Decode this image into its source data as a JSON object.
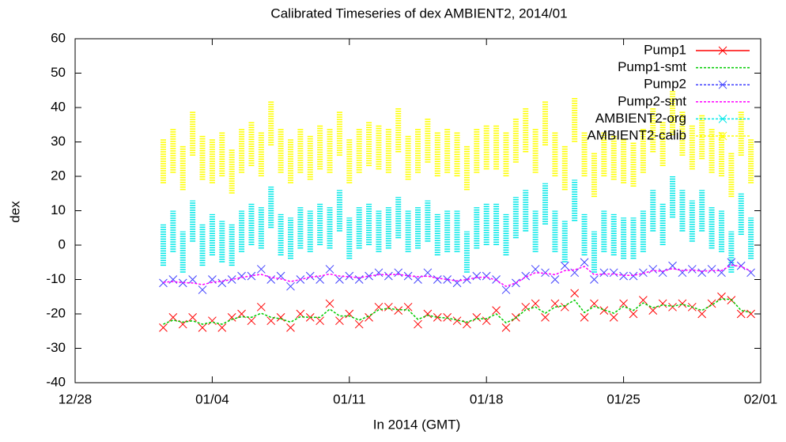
{
  "chart_data": {
    "type": "line",
    "title": "Calibrated Timeseries of dex AMBIENT2, 2014/01",
    "x_label": "In 2014 (GMT)",
    "y_label": "dex",
    "xlim": [
      0,
      35
    ],
    "xticks": [
      {
        "value": 0,
        "label": "12/28"
      },
      {
        "value": 7,
        "label": "01/04"
      },
      {
        "value": 14,
        "label": "01/11"
      },
      {
        "value": 21,
        "label": "01/18"
      },
      {
        "value": 28,
        "label": "01/25"
      },
      {
        "value": 35,
        "label": "02/01"
      }
    ],
    "ylim": [
      -40,
      60
    ],
    "yticks": [
      -40,
      -30,
      -20,
      -10,
      0,
      10,
      20,
      30,
      40,
      50,
      60
    ],
    "legend": "top-right",
    "x": [
      4.5,
      5,
      5.5,
      6,
      6.5,
      7,
      7.5,
      8,
      8.5,
      9,
      9.5,
      10,
      10.5,
      11,
      11.5,
      12,
      12.5,
      13,
      13.5,
      14,
      14.5,
      15,
      15.5,
      16,
      16.5,
      17,
      17.5,
      18,
      18.5,
      19,
      19.5,
      20,
      20.5,
      21,
      21.5,
      22,
      22.5,
      23,
      23.5,
      24,
      24.5,
      25,
      25.5,
      26,
      26.5,
      27,
      27.5,
      28,
      28.5,
      29,
      29.5,
      30,
      30.5,
      31,
      31.5,
      32,
      32.5,
      33,
      33.5,
      34,
      34.5
    ],
    "series": [
      {
        "name": "Pump1",
        "color": "#ff0000",
        "style": "points",
        "values": [
          -24,
          -21,
          -23,
          -21,
          -24,
          -22,
          -24,
          -21,
          -20,
          -22,
          -18,
          -22,
          -21,
          -24,
          -20,
          -21,
          -22,
          -17,
          -22,
          -20,
          -23,
          -21,
          -18,
          -18,
          -19,
          -18,
          -23,
          -20,
          -21,
          -21,
          -22,
          -23,
          -21,
          -22,
          -19,
          -24,
          -21,
          -18,
          -17,
          -21,
          -17,
          -18,
          -14,
          -21,
          -17,
          -19,
          -21,
          -17,
          -20,
          -16,
          -19,
          -17,
          -18,
          -17,
          -18,
          -20,
          -17,
          -15,
          -16,
          -20,
          -20
        ]
      },
      {
        "name": "Pump1-smt",
        "color": "#00cc00",
        "style": "line",
        "values": [
          -23,
          -21.8,
          -22.4,
          -22,
          -23,
          -22.4,
          -23,
          -21.6,
          -20.8,
          -21,
          -19.8,
          -21,
          -21.4,
          -22.4,
          -20.8,
          -21,
          -21,
          -18.6,
          -20.6,
          -20.6,
          -21.8,
          -20.6,
          -18.8,
          -18.4,
          -18.8,
          -18.8,
          -21.6,
          -20.4,
          -21,
          -21.2,
          -21.8,
          -22.4,
          -21.4,
          -21.4,
          -20,
          -22.6,
          -21.2,
          -18.8,
          -18,
          -19.8,
          -18,
          -17.6,
          -16,
          -19.6,
          -17.8,
          -18.8,
          -19.8,
          -17.8,
          -19,
          -16.8,
          -18.2,
          -17.4,
          -17.8,
          -17.2,
          -18,
          -19,
          -17.4,
          -15.6,
          -15.8,
          -19,
          -19.6
        ]
      },
      {
        "name": "Pump2",
        "color": "#4040ff",
        "style": "points",
        "values": [
          -11,
          -10,
          -11,
          -10,
          -13,
          -10,
          -11,
          -10,
          -9,
          -9,
          -7,
          -10,
          -9,
          -12,
          -10,
          -9,
          -10,
          -7,
          -10,
          -9,
          -10,
          -9,
          -8,
          -9,
          -8,
          -9,
          -10,
          -8,
          -10,
          -10,
          -11,
          -10,
          -9,
          -9,
          -10,
          -13,
          -11,
          -9,
          -7,
          -8,
          -10,
          -6,
          -8,
          -5,
          -10,
          -8,
          -8,
          -9,
          -9,
          -8,
          -7,
          -8,
          -6,
          -8,
          -7,
          -8,
          -7,
          -8,
          -5,
          -6,
          -8
        ]
      },
      {
        "name": "Pump2-smt",
        "color": "#ff00ff",
        "style": "line",
        "values": [
          -10.8,
          -10.6,
          -10.9,
          -11,
          -11.5,
          -10.8,
          -10.5,
          -10,
          -9.4,
          -8.9,
          -8.5,
          -9.4,
          -9.8,
          -10.6,
          -10,
          -9.3,
          -9,
          -8.4,
          -9,
          -9.2,
          -9.5,
          -9,
          -8.6,
          -8.6,
          -8.5,
          -8.9,
          -9.2,
          -9,
          -9.6,
          -10,
          -10.4,
          -10,
          -9.4,
          -9.3,
          -10.2,
          -12,
          -11,
          -9.3,
          -8,
          -8.2,
          -8.6,
          -7.4,
          -7.2,
          -6.2,
          -8.6,
          -8.4,
          -8.4,
          -8.8,
          -8.8,
          -8.2,
          -7.4,
          -7.6,
          -6.8,
          -7.4,
          -7.2,
          -7.6,
          -7.4,
          -7.4,
          -5.8,
          -6.2,
          -7.6
        ]
      },
      {
        "name": "AMBIENT2-org",
        "color": "#00e8e8",
        "style": "range",
        "low": [
          -6,
          -2,
          -8,
          1,
          -6,
          -3,
          -5,
          -6,
          -2,
          0,
          -1,
          5,
          -3,
          -4,
          -1,
          -2,
          0,
          -1,
          4,
          -4,
          -1,
          0,
          -2,
          -1,
          2,
          -2,
          -1,
          1,
          -3,
          -2,
          -2,
          -8,
          -1,
          0,
          0,
          -3,
          2,
          4,
          -2,
          6,
          -2,
          -5,
          7,
          -3,
          -8,
          -2,
          -3,
          -4,
          -4,
          -2,
          4,
          0,
          8,
          4,
          1,
          4,
          -1,
          -2,
          -8,
          3,
          -4
        ],
        "high": [
          6,
          10,
          4,
          13,
          6,
          9,
          7,
          6,
          10,
          12,
          11,
          17,
          9,
          8,
          11,
          10,
          12,
          11,
          16,
          8,
          11,
          12,
          10,
          11,
          14,
          10,
          11,
          13,
          9,
          10,
          10,
          4,
          11,
          12,
          12,
          9,
          14,
          16,
          10,
          18,
          10,
          7,
          19,
          9,
          4,
          10,
          9,
          8,
          8,
          10,
          16,
          12,
          20,
          16,
          13,
          16,
          11,
          10,
          4,
          15,
          8
        ]
      },
      {
        "name": "AMBIENT2-calib",
        "color": "#ffff00",
        "style": "range",
        "low": [
          18,
          21,
          16,
          26,
          19,
          18,
          20,
          15,
          21,
          23,
          20,
          29,
          21,
          18,
          21,
          19,
          22,
          21,
          26,
          18,
          21,
          23,
          22,
          21,
          27,
          19,
          21,
          24,
          20,
          21,
          20,
          16,
          21,
          22,
          22,
          20,
          24,
          27,
          21,
          29,
          20,
          16,
          30,
          20,
          14,
          20,
          19,
          18,
          17,
          21,
          27,
          23,
          32,
          26,
          22,
          25,
          21,
          20,
          14,
          26,
          18
        ],
        "high": [
          31,
          34,
          29,
          39,
          32,
          31,
          33,
          28,
          34,
          36,
          33,
          42,
          34,
          31,
          34,
          32,
          35,
          34,
          39,
          31,
          34,
          36,
          35,
          34,
          40,
          32,
          34,
          37,
          33,
          34,
          33,
          29,
          34,
          35,
          35,
          33,
          37,
          40,
          34,
          42,
          33,
          29,
          43,
          33,
          27,
          33,
          32,
          31,
          30,
          34,
          40,
          36,
          45,
          39,
          35,
          38,
          34,
          33,
          27,
          39,
          31
        ]
      }
    ]
  }
}
